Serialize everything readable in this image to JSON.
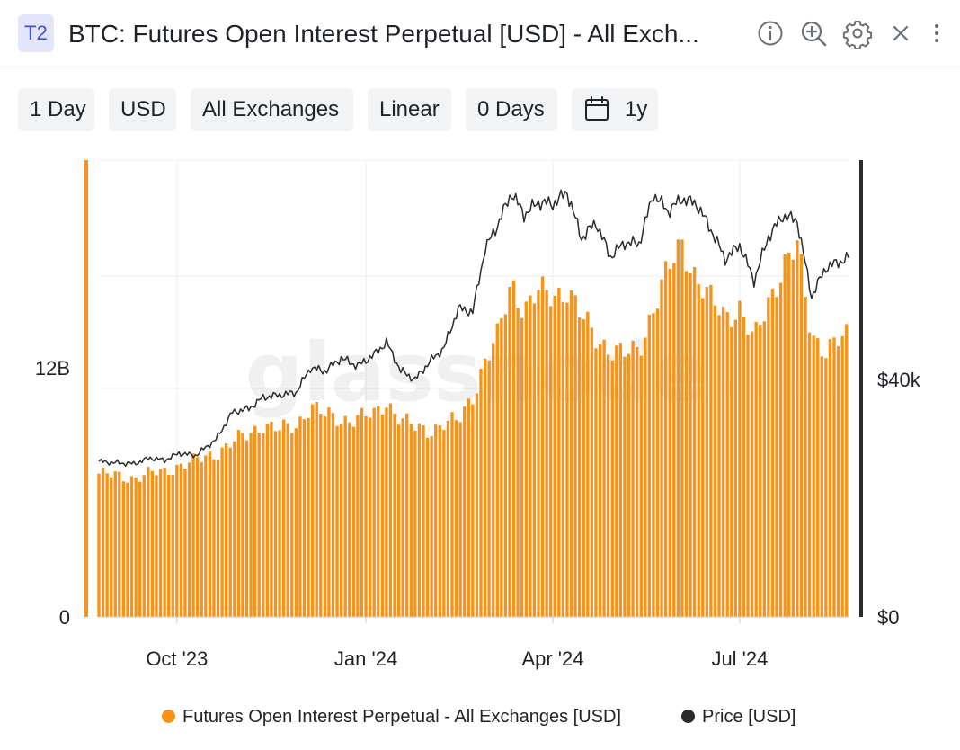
{
  "header": {
    "badge": "T2",
    "title": "BTC: Futures Open Interest Perpetual [USD] - All Exch...",
    "icons": [
      "info-icon",
      "zoom-in-icon",
      "gear-icon",
      "close-icon",
      "more-vertical-icon"
    ]
  },
  "toolbar": {
    "resolution": "1 Day",
    "currency": "USD",
    "exchange": "All Exchanges",
    "scale": "Linear",
    "sma": "0 Days",
    "range": "1y"
  },
  "watermark": "glassnode",
  "colors": {
    "bars": "#f7931a",
    "price_line": "#2b2b2b",
    "grid": "#eceef0",
    "axis_text": "#1f2328"
  },
  "chart_data": {
    "type": "bar",
    "x_start": "2023-08-24",
    "x_end": "2024-08-23",
    "x_ticks": [
      "Oct '23",
      "Jan '24",
      "Apr '24",
      "Jul '24"
    ],
    "x_tick_dates": [
      "2023-10-01",
      "2024-01-01",
      "2024-04-01",
      "2024-07-01"
    ],
    "y_left": {
      "label": "",
      "range": [
        0,
        22000000000.0
      ],
      "ticks": [
        0,
        12000000000.0
      ],
      "tick_labels": [
        "0",
        "12B"
      ]
    },
    "y_right": {
      "label": "",
      "range": [
        0,
        77000
      ],
      "ticks": [
        0,
        40000
      ],
      "tick_labels": [
        "$0",
        "$40k"
      ]
    },
    "legend_position": "bottom",
    "grid": true,
    "series": [
      {
        "name": "Futures Open Interest Perpetual - All Exchanges [USD]",
        "type": "bar",
        "axis": "left",
        "color": "#f7931a",
        "points": [
          [
            "2023-08-24",
            6900000000.0
          ],
          [
            "2023-09-01",
            6800000000.0
          ],
          [
            "2023-09-10",
            6700000000.0
          ],
          [
            "2023-09-18",
            6900000000.0
          ],
          [
            "2023-09-25",
            7000000000.0
          ],
          [
            "2023-10-02",
            7300000000.0
          ],
          [
            "2023-10-10",
            7500000000.0
          ],
          [
            "2023-10-20",
            7900000000.0
          ],
          [
            "2023-10-28",
            8400000000.0
          ],
          [
            "2023-11-05",
            8800000000.0
          ],
          [
            "2023-11-12",
            9300000000.0
          ],
          [
            "2023-11-20",
            9000000000.0
          ],
          [
            "2023-11-28",
            9200000000.0
          ],
          [
            "2023-12-05",
            10200000000.0
          ],
          [
            "2023-12-12",
            9700000000.0
          ],
          [
            "2023-12-20",
            9500000000.0
          ],
          [
            "2023-12-28",
            9600000000.0
          ],
          [
            "2024-01-05",
            9700000000.0
          ],
          [
            "2024-01-11",
            10400000000.0
          ],
          [
            "2024-01-18",
            9500000000.0
          ],
          [
            "2024-01-25",
            9100000000.0
          ],
          [
            "2024-02-01",
            9000000000.0
          ],
          [
            "2024-02-08",
            9300000000.0
          ],
          [
            "2024-02-15",
            9400000000.0
          ],
          [
            "2024-02-22",
            10700000000.0
          ],
          [
            "2024-02-28",
            12300000000.0
          ],
          [
            "2024-03-05",
            13400000000.0
          ],
          [
            "2024-03-12",
            16200000000.0
          ],
          [
            "2024-03-18",
            14800000000.0
          ],
          [
            "2024-03-25",
            15600000000.0
          ],
          [
            "2024-04-01",
            15500000000.0
          ],
          [
            "2024-04-08",
            15800000000.0
          ],
          [
            "2024-04-15",
            14400000000.0
          ],
          [
            "2024-04-22",
            13500000000.0
          ],
          [
            "2024-04-29",
            12900000000.0
          ],
          [
            "2024-05-06",
            12600000000.0
          ],
          [
            "2024-05-13",
            12900000000.0
          ],
          [
            "2024-05-20",
            14900000000.0
          ],
          [
            "2024-05-27",
            16600000000.0
          ],
          [
            "2024-06-03",
            18000000000.0
          ],
          [
            "2024-06-10",
            16300000000.0
          ],
          [
            "2024-06-17",
            15200000000.0
          ],
          [
            "2024-06-24",
            14500000000.0
          ],
          [
            "2024-07-01",
            14900000000.0
          ],
          [
            "2024-07-08",
            13200000000.0
          ],
          [
            "2024-07-15",
            15200000000.0
          ],
          [
            "2024-07-22",
            16900000000.0
          ],
          [
            "2024-07-29",
            17800000000.0
          ],
          [
            "2024-08-05",
            13600000000.0
          ],
          [
            "2024-08-12",
            12900000000.0
          ],
          [
            "2024-08-23",
            13500000000.0
          ]
        ]
      },
      {
        "name": "Price [USD]",
        "type": "line",
        "axis": "right",
        "color": "#2b2b2b",
        "points": [
          [
            "2023-08-24",
            26200
          ],
          [
            "2023-09-01",
            26000
          ],
          [
            "2023-09-10",
            25800
          ],
          [
            "2023-09-18",
            26800
          ],
          [
            "2023-09-25",
            26400
          ],
          [
            "2023-10-02",
            27600
          ],
          [
            "2023-10-10",
            27200
          ],
          [
            "2023-10-20",
            29900
          ],
          [
            "2023-10-28",
            34500
          ],
          [
            "2023-11-05",
            35100
          ],
          [
            "2023-11-12",
            37000
          ],
          [
            "2023-11-20",
            37400
          ],
          [
            "2023-11-28",
            37800
          ],
          [
            "2023-12-05",
            42000
          ],
          [
            "2023-12-12",
            41400
          ],
          [
            "2023-12-20",
            43600
          ],
          [
            "2023-12-28",
            42300
          ],
          [
            "2024-01-05",
            44200
          ],
          [
            "2024-01-11",
            46300
          ],
          [
            "2024-01-18",
            41500
          ],
          [
            "2024-01-25",
            40000
          ],
          [
            "2024-02-01",
            43000
          ],
          [
            "2024-02-08",
            45300
          ],
          [
            "2024-02-15",
            52000
          ],
          [
            "2024-02-22",
            51400
          ],
          [
            "2024-02-28",
            62000
          ],
          [
            "2024-03-05",
            66000
          ],
          [
            "2024-03-12",
            71500
          ],
          [
            "2024-03-18",
            67800
          ],
          [
            "2024-03-25",
            69900
          ],
          [
            "2024-04-01",
            69600
          ],
          [
            "2024-04-08",
            71600
          ],
          [
            "2024-04-15",
            63800
          ],
          [
            "2024-04-22",
            66500
          ],
          [
            "2024-04-29",
            60700
          ],
          [
            "2024-05-06",
            63100
          ],
          [
            "2024-05-13",
            62900
          ],
          [
            "2024-05-20",
            71300
          ],
          [
            "2024-05-27",
            68400
          ],
          [
            "2024-06-03",
            70500
          ],
          [
            "2024-06-10",
            69600
          ],
          [
            "2024-06-17",
            65300
          ],
          [
            "2024-06-24",
            60300
          ],
          [
            "2024-07-01",
            62700
          ],
          [
            "2024-07-08",
            56700
          ],
          [
            "2024-07-15",
            64100
          ],
          [
            "2024-07-22",
            67600
          ],
          [
            "2024-07-29",
            66800
          ],
          [
            "2024-08-05",
            54000
          ],
          [
            "2024-08-12",
            58900
          ],
          [
            "2024-08-23",
            60500
          ]
        ]
      }
    ]
  }
}
